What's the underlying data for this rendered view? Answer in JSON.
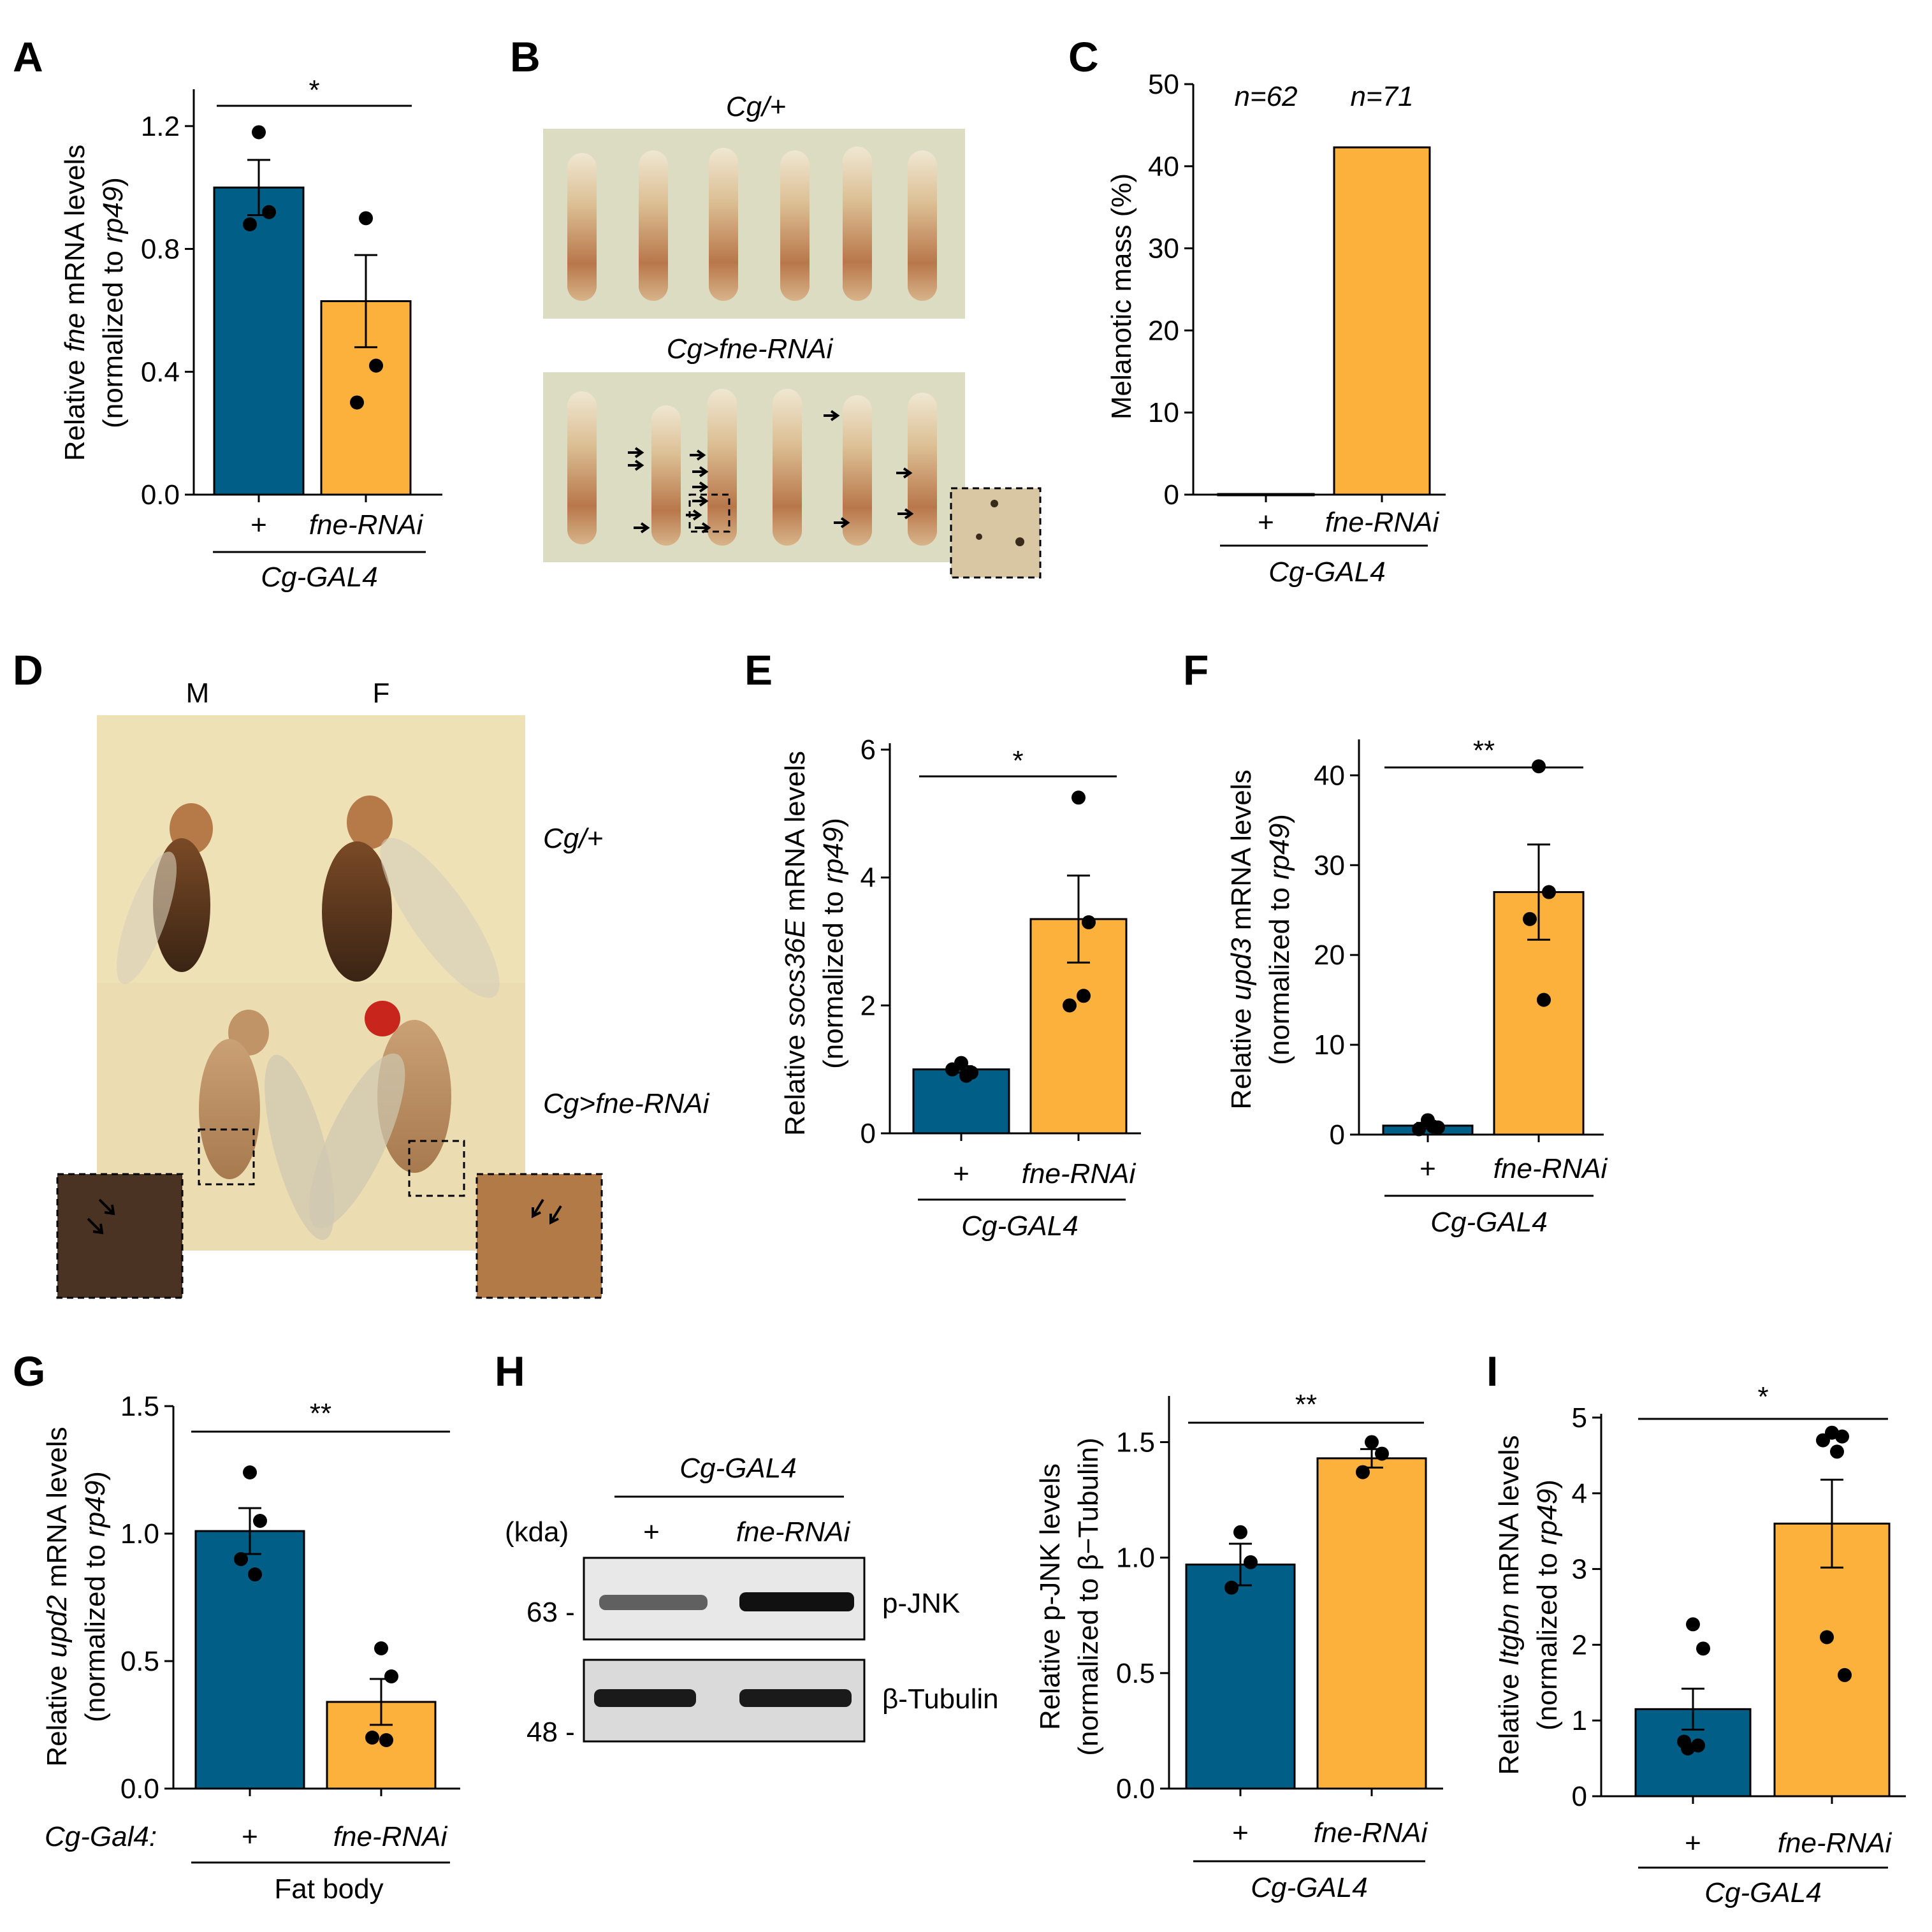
{
  "colors": {
    "control": "#005e87",
    "rnai": "#fbb13c",
    "photo_bg": "#dcdcc2",
    "fly_bg": "#efe1b6"
  },
  "panels": {
    "A": {
      "label": "A"
    },
    "B": {
      "label": "B",
      "top_label": "Cg/+",
      "bottom_label": "Cg>fne-RNAi"
    },
    "C": {
      "label": "C"
    },
    "D": {
      "label": "D",
      "col_m": "M",
      "col_f": "F",
      "row_top": "Cg/+",
      "row_bottom": "Cg>fne-RNAi"
    },
    "E": {
      "label": "E"
    },
    "F": {
      "label": "F"
    },
    "G": {
      "label": "G"
    },
    "H": {
      "label": "H",
      "blot_title": "Cg-GAL4",
      "kda_label": "(kda)",
      "lane1": "+",
      "lane2": "fne-RNAi",
      "marker_63": "63 -",
      "marker_48": "48 -",
      "band1": "p-JNK",
      "band2": "β-Tubulin"
    },
    "I": {
      "label": "I"
    }
  },
  "chart_data": [
    {
      "panel": "A",
      "type": "bar",
      "categories": [
        "+",
        "fne-RNAi"
      ],
      "values": [
        1.0,
        0.63
      ],
      "errors": [
        0.09,
        0.15
      ],
      "points": [
        [
          1.18,
          0.92,
          0.88
        ],
        [
          0.9,
          0.42,
          0.3
        ]
      ],
      "yticks": [
        "0.0",
        "0.4",
        "0.8",
        "1.2"
      ],
      "ylim": [
        0,
        1.32
      ],
      "ylabel_pre": "Relative ",
      "ylabel_gene": "fne",
      "ylabel_post": " mRNA levels",
      "ylabel2_pre": "(normalized to ",
      "ylabel2_gene": "rp49",
      "ylabel2_post": ")",
      "significance": "*",
      "group_label": "Cg-GAL4"
    },
    {
      "panel": "C",
      "type": "bar",
      "categories": [
        "+",
        "fne-RNAi"
      ],
      "values": [
        0,
        42.3
      ],
      "errors": [
        0,
        0
      ],
      "points": [
        [],
        []
      ],
      "yticks": [
        "0",
        "10",
        "20",
        "30",
        "40",
        "50"
      ],
      "ylim": [
        0,
        50
      ],
      "ylabel": "Melanotic mass (%)",
      "n_labels": [
        "n=62",
        "n=71"
      ],
      "group_label": "Cg-GAL4"
    },
    {
      "panel": "E",
      "type": "bar",
      "categories": [
        "+",
        "fne-RNAi"
      ],
      "values": [
        1.0,
        3.35
      ],
      "errors": [
        0.05,
        0.68
      ],
      "points": [
        [
          1.1,
          0.95,
          1.0,
          0.9
        ],
        [
          5.25,
          3.3,
          2.0,
          2.15
        ]
      ],
      "yticks": [
        "0",
        "2",
        "4",
        "6"
      ],
      "ylim": [
        0,
        6.1
      ],
      "ylabel_pre": "Relative ",
      "ylabel_gene": "socs36E",
      "ylabel_post": " mRNA levels",
      "ylabel2_pre": "(normalized to ",
      "ylabel2_gene": "rp49",
      "ylabel2_post": ")",
      "significance": "*",
      "group_label": "Cg-GAL4"
    },
    {
      "panel": "F",
      "type": "bar",
      "categories": [
        "+",
        "fne-RNAi"
      ],
      "values": [
        1.0,
        27.0
      ],
      "errors": [
        0.3,
        5.3
      ],
      "points": [
        [
          1.6,
          0.8,
          0.6,
          0.9
        ],
        [
          41.0,
          27.0,
          24.0,
          15.0
        ]
      ],
      "yticks": [
        "0",
        "10",
        "20",
        "30",
        "40"
      ],
      "ylim": [
        0,
        44
      ],
      "ylabel_pre": "Relative ",
      "ylabel_gene": "upd3",
      "ylabel_post": " mRNA levels",
      "ylabel2_pre": "(normalized to ",
      "ylabel2_gene": "rp49",
      "ylabel2_post": ")",
      "significance": "**",
      "group_label": "Cg-GAL4"
    },
    {
      "panel": "G",
      "type": "bar",
      "categories": [
        "+",
        "fne-RNAi"
      ],
      "values": [
        1.01,
        0.34
      ],
      "errors": [
        0.09,
        0.09
      ],
      "points": [
        [
          1.24,
          1.05,
          0.9,
          0.84
        ],
        [
          0.55,
          0.44,
          0.2,
          0.19
        ]
      ],
      "yticks": [
        "0.0",
        "0.5",
        "1.0",
        "1.5"
      ],
      "ylim": [
        0,
        1.5
      ],
      "ylabel_pre": "Relative ",
      "ylabel_gene": "upd2",
      "ylabel_post": " mRNA levels",
      "ylabel2_pre": "(normalized to ",
      "ylabel2_gene": "rp49",
      "ylabel2_post": ")",
      "significance": "**",
      "row_prefix": "Cg-Gal4:",
      "group_label": "Fat body"
    },
    {
      "panel": "H",
      "type": "bar",
      "categories": [
        "+",
        "fne-RNAi"
      ],
      "values": [
        0.97,
        1.43
      ],
      "errors": [
        0.09,
        0.04
      ],
      "points": [
        [
          1.11,
          0.98,
          0.87
        ],
        [
          1.5,
          1.45,
          1.37
        ]
      ],
      "yticks": [
        "0.0",
        "0.5",
        "1.0",
        "1.5"
      ],
      "ylim": [
        0,
        1.7
      ],
      "ylabel": "Relative p-JNK levels",
      "ylabel2": "(normalized to β−Tubulin)",
      "significance": "**",
      "group_label": "Cg-GAL4"
    },
    {
      "panel": "I",
      "type": "bar",
      "categories": [
        "+",
        "fne-RNAi"
      ],
      "values": [
        1.15,
        3.6
      ],
      "errors": [
        0.27,
        0.58
      ],
      "points": [
        [
          2.27,
          1.95,
          0.72,
          0.67,
          0.63
        ],
        [
          4.8,
          4.75,
          4.7,
          4.55,
          2.1,
          1.6
        ]
      ],
      "yticks": [
        "0",
        "1",
        "2",
        "3",
        "4",
        "5"
      ],
      "ylim": [
        0,
        5.05
      ],
      "ylabel_pre": "Relative ",
      "ylabel_gene": "Itgbn",
      "ylabel_post": " mRNA levels",
      "ylabel2_pre": "(normalized to ",
      "ylabel2_gene": "rp49",
      "ylabel2_post": ")",
      "significance": "*",
      "group_label": "Cg-GAL4"
    }
  ]
}
